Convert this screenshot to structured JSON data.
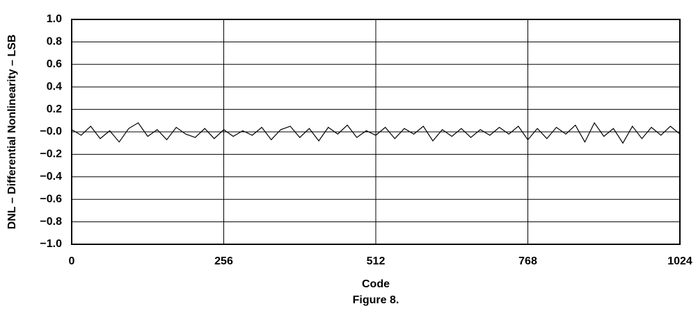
{
  "chart_data": {
    "type": "line",
    "x_label": "Code",
    "y_label": "DNL – Differential Nonlinearity – LSB",
    "caption": "Figure 8.",
    "xlim": [
      0,
      1024
    ],
    "xticks": [
      0,
      256,
      512,
      768,
      1024
    ],
    "ylim": [
      -1,
      1
    ],
    "yticks": [
      {
        "value": 1,
        "label": "1.0"
      },
      {
        "value": 0.8,
        "label": "0.8"
      },
      {
        "value": 0.6,
        "label": "0.6"
      },
      {
        "value": 0.4,
        "label": "0.4"
      },
      {
        "value": 0.2,
        "label": "0.2"
      },
      {
        "value": 0,
        "label": "−0.0"
      },
      {
        "value": -0.2,
        "label": "−0.2"
      },
      {
        "value": -0.4,
        "label": "−0.4"
      },
      {
        "value": -0.6,
        "label": "−0.6"
      },
      {
        "value": -0.8,
        "label": "−0.8"
      },
      {
        "value": -1,
        "label": "−1.0"
      }
    ],
    "grid": true,
    "color": "#000000",
    "x": [
      0,
      16,
      32,
      48,
      64,
      80,
      96,
      112,
      128,
      144,
      160,
      176,
      192,
      208,
      224,
      240,
      256,
      272,
      288,
      304,
      320,
      336,
      352,
      368,
      384,
      400,
      416,
      432,
      448,
      464,
      480,
      496,
      512,
      528,
      544,
      560,
      576,
      592,
      608,
      624,
      640,
      656,
      672,
      688,
      704,
      720,
      736,
      752,
      768,
      784,
      800,
      816,
      832,
      848,
      864,
      880,
      896,
      912,
      928,
      944,
      960,
      976,
      992,
      1008,
      1024
    ],
    "values": [
      0.02,
      -0.03,
      0.05,
      -0.06,
      0.01,
      -0.09,
      0.03,
      0.08,
      -0.04,
      0.02,
      -0.07,
      0.04,
      -0.02,
      -0.05,
      0.03,
      -0.06,
      0.02,
      -0.04,
      0.01,
      -0.03,
      0.04,
      -0.07,
      0.02,
      0.05,
      -0.05,
      0.03,
      -0.08,
      0.04,
      -0.02,
      0.06,
      -0.05,
      0.01,
      -0.03,
      0.04,
      -0.06,
      0.03,
      -0.02,
      0.05,
      -0.08,
      0.02,
      -0.04,
      0.03,
      -0.05,
      0.02,
      -0.03,
      0.04,
      -0.02,
      0.05,
      -0.07,
      0.03,
      -0.06,
      0.04,
      -0.02,
      0.06,
      -0.09,
      0.08,
      -0.04,
      0.03,
      -0.1,
      0.05,
      -0.06,
      0.04,
      -0.03,
      0.05,
      -0.02
    ]
  }
}
